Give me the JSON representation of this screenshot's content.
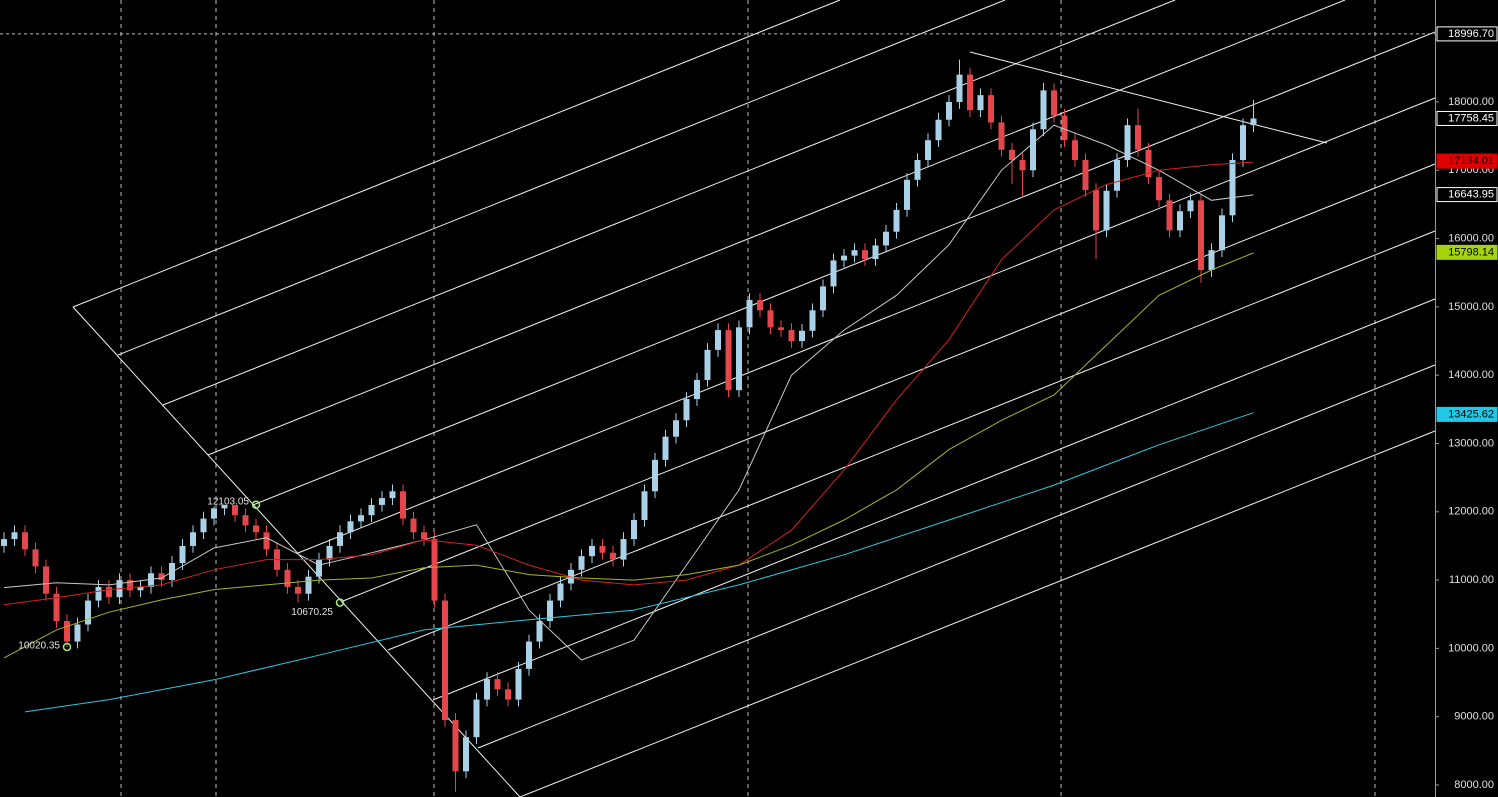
{
  "chart_data": {
    "type": "candlestick",
    "ylim": [
      7824,
      19493
    ],
    "yticks": [
      {
        "value": 8000,
        "label": "8000.00"
      },
      {
        "value": 9000,
        "label": "9000.00"
      },
      {
        "value": 10000,
        "label": "10000.00"
      },
      {
        "value": 11000,
        "label": "11000.00"
      },
      {
        "value": 12000,
        "label": "12000.00"
      },
      {
        "value": 13000,
        "label": "13000.00"
      },
      {
        "value": 14000,
        "label": "14000.00"
      },
      {
        "value": 15000,
        "label": "15000.00"
      },
      {
        "value": 16000,
        "label": "16000.00"
      },
      {
        "value": 17000,
        "label": "17000.00"
      },
      {
        "value": 18000,
        "label": "18000.00"
      }
    ],
    "up_color": "#a9d2e8",
    "down_color": "#e4464b",
    "open": [
      11500,
      11600,
      11700,
      11450,
      11200,
      10800,
      10400,
      10100,
      10350,
      10700,
      10900,
      10750,
      11000,
      10850,
      10900,
      11100,
      11000,
      11250,
      11500,
      11700,
      11900,
      12050,
      12100,
      11950,
      11800,
      11700,
      11450,
      11150,
      10900,
      10800,
      11050,
      11300,
      11500,
      11700,
      11860,
      11950,
      12100,
      12200,
      12300,
      11900,
      11700,
      11600,
      10700,
      8950,
      8200,
      8700,
      9250,
      9550,
      9400,
      9250,
      9700,
      10100,
      10400,
      10700,
      10950,
      11150,
      11350,
      11500,
      11400,
      11300,
      11600,
      11880,
      12300,
      12760,
      13100,
      13340,
      13650,
      13930,
      14370,
      14660,
      13780,
      14700,
      15100,
      14950,
      14700,
      14660,
      14500,
      14650,
      14950,
      15300,
      15680,
      15750,
      15830,
      15700,
      15900,
      16100,
      16420,
      16860,
      17150,
      17440,
      17740,
      18000,
      18400,
      17880,
      18100,
      17700,
      17300,
      17150,
      17000,
      17600,
      18170,
      17800,
      17440,
      17150,
      16710,
      16120,
      16700,
      17150,
      17660,
      17300,
      16900,
      16560,
      16120,
      16400,
      16560,
      15540,
      15830,
      16340,
      17150,
      17660
    ],
    "high": [
      11700,
      11800,
      11800,
      11550,
      11300,
      10900,
      10500,
      10450,
      10800,
      11000,
      11000,
      11100,
      11100,
      11000,
      11200,
      11200,
      11350,
      11600,
      11800,
      12000,
      12080,
      12103,
      12100,
      12050,
      11900,
      11800,
      11550,
      11250,
      11000,
      11150,
      11400,
      11600,
      11800,
      11960,
      12050,
      12200,
      12300,
      12400,
      12400,
      12000,
      11800,
      11700,
      10800,
      9050,
      8800,
      9350,
      9650,
      9650,
      9500,
      9800,
      10200,
      10500,
      10800,
      11050,
      11250,
      11450,
      11600,
      11600,
      11500,
      11700,
      11980,
      12400,
      12860,
      13200,
      13440,
      13750,
      14030,
      14470,
      14760,
      14760,
      14800,
      15200,
      15200,
      15050,
      14800,
      14760,
      14750,
      15050,
      15400,
      15780,
      15850,
      15930,
      15930,
      16000,
      16200,
      16520,
      16960,
      17250,
      17540,
      17840,
      18100,
      18620,
      18500,
      18200,
      18200,
      17800,
      17400,
      17250,
      17700,
      18280,
      18270,
      17900,
      17540,
      17250,
      16810,
      16800,
      17250,
      17760,
      17900,
      17400,
      17000,
      16660,
      16500,
      16660,
      16660,
      15930,
      16440,
      17250,
      17760,
      18030
    ],
    "low": [
      11400,
      11500,
      11350,
      11100,
      10700,
      10300,
      10020,
      10000,
      10250,
      10600,
      10650,
      10650,
      10750,
      10750,
      10800,
      10900,
      10900,
      11150,
      11400,
      11600,
      11800,
      11950,
      11850,
      11700,
      11600,
      11350,
      11050,
      10800,
      10670,
      10700,
      10950,
      11200,
      11400,
      11600,
      11760,
      11850,
      12000,
      12100,
      11800,
      11600,
      11500,
      10600,
      8850,
      7900,
      8100,
      8600,
      9150,
      9300,
      9150,
      9150,
      9600,
      10000,
      10300,
      10600,
      10850,
      11050,
      11250,
      11300,
      11200,
      11200,
      11500,
      11780,
      12200,
      12660,
      13000,
      13240,
      13550,
      13830,
      14270,
      13680,
      13680,
      14600,
      14850,
      14600,
      14560,
      14400,
      14400,
      14550,
      14850,
      15200,
      15580,
      15650,
      15600,
      15600,
      15800,
      16000,
      16320,
      16760,
      17050,
      17340,
      17640,
      17900,
      17780,
      17780,
      17600,
      17200,
      16800,
      16600,
      16900,
      17500,
      17700,
      17340,
      17050,
      16610,
      15700,
      16020,
      16600,
      17050,
      17200,
      16800,
      16460,
      16020,
      16020,
      16300,
      15350,
      15440,
      15730,
      16240,
      17050,
      17560
    ],
    "close": [
      11600,
      11700,
      11450,
      11200,
      10800,
      10400,
      10100,
      10350,
      10700,
      10900,
      10750,
      11000,
      10850,
      10900,
      11100,
      11000,
      11250,
      11500,
      11700,
      11900,
      12050,
      12100,
      11950,
      11800,
      11700,
      11450,
      11150,
      10900,
      10800,
      11050,
      11300,
      11500,
      11700,
      11860,
      11950,
      12100,
      12200,
      12300,
      11900,
      11700,
      11600,
      10700,
      8950,
      8200,
      8700,
      9250,
      9550,
      9400,
      9250,
      9700,
      10100,
      10400,
      10700,
      10950,
      11150,
      11350,
      11500,
      11400,
      11300,
      11600,
      11880,
      12300,
      12760,
      13100,
      13340,
      13650,
      13930,
      14370,
      14660,
      13780,
      14700,
      15100,
      14950,
      14700,
      14660,
      14500,
      14650,
      14950,
      15300,
      15680,
      15750,
      15830,
      15700,
      15900,
      16100,
      16420,
      16860,
      17150,
      17440,
      17740,
      18000,
      18400,
      17880,
      18100,
      17700,
      17300,
      17150,
      17000,
      17600,
      18170,
      17800,
      17440,
      17150,
      16710,
      16120,
      16700,
      17150,
      17660,
      17300,
      16900,
      16560,
      16120,
      16400,
      16560,
      15540,
      15830,
      16340,
      17150,
      17660,
      17758
    ],
    "lines": [
      {
        "color": "#c8c8c8",
        "x": [
          0,
          5,
          10,
          15,
          20,
          25,
          30,
          35,
          40,
          45,
          50,
          55,
          60,
          65,
          70,
          75,
          80,
          85,
          90,
          95,
          100,
          105,
          110,
          115,
          119
        ],
        "values": [
          10890,
          10960,
          10930,
          11030,
          11470,
          11620,
          11220,
          11400,
          11590,
          11810,
          10560,
          9830,
          10120,
          11220,
          12320,
          14000,
          14660,
          15170,
          15910,
          17000,
          17660,
          17370,
          17000,
          16560,
          16640
        ]
      },
      {
        "color": "#d42020",
        "x": [
          0,
          5,
          10,
          15,
          20,
          25,
          30,
          35,
          40,
          45,
          50,
          55,
          60,
          65,
          70,
          75,
          80,
          85,
          90,
          95,
          100,
          105,
          110,
          115,
          119
        ],
        "values": [
          10640,
          10740,
          10860,
          10930,
          11150,
          11300,
          11300,
          11370,
          11590,
          11510,
          11220,
          11000,
          10930,
          11000,
          11220,
          11730,
          12610,
          13640,
          14520,
          15690,
          16420,
          16790,
          17000,
          17080,
          17120
        ]
      },
      {
        "color": "#a8b424",
        "x": [
          0,
          5,
          10,
          15,
          20,
          25,
          30,
          35,
          40,
          45,
          50,
          55,
          60,
          65,
          70,
          75,
          80,
          85,
          90,
          95,
          100,
          105,
          110,
          115,
          119
        ],
        "values": [
          9860,
          10270,
          10530,
          10710,
          10860,
          10930,
          11000,
          11030,
          11180,
          11220,
          11080,
          11030,
          11000,
          11080,
          11220,
          11510,
          11880,
          12320,
          12910,
          13340,
          13710,
          14440,
          15170,
          15540,
          15790
        ]
      },
      {
        "color": "#2ec8e0",
        "x": [
          2,
          10,
          20,
          30,
          40,
          50,
          60,
          70,
          80,
          90,
          100,
          110,
          119
        ],
        "values": [
          9070,
          9250,
          9540,
          9900,
          10270,
          10420,
          10560,
          10930,
          11370,
          11880,
          12390,
          12980,
          13450
        ]
      }
    ],
    "price_tags": [
      {
        "value": 18996.7,
        "label": "18996.70",
        "color": "#ffffff",
        "text_color": "#000000",
        "dashed": true
      },
      {
        "value": 17758.45,
        "color": "#ffffff",
        "text_color": "#000000"
      },
      {
        "value": 17134.01,
        "color": "#e00000",
        "text_color": "#000000"
      },
      {
        "value": 16643.95,
        "color": "#ffffff",
        "text_color": "#000000"
      },
      {
        "value": 15798.14,
        "color": "#a6d40a",
        "text_color": "#000000"
      },
      {
        "value": 13425.62,
        "color": "#22c8e8",
        "text_color": "#000000"
      }
    ],
    "annotations": [
      {
        "index": 24,
        "value": 12103.05,
        "side": "left-above"
      },
      {
        "index": 32,
        "value": 10670.25,
        "side": "left-below"
      },
      {
        "index": 6,
        "value": 10020.35,
        "side": "left"
      }
    ]
  }
}
